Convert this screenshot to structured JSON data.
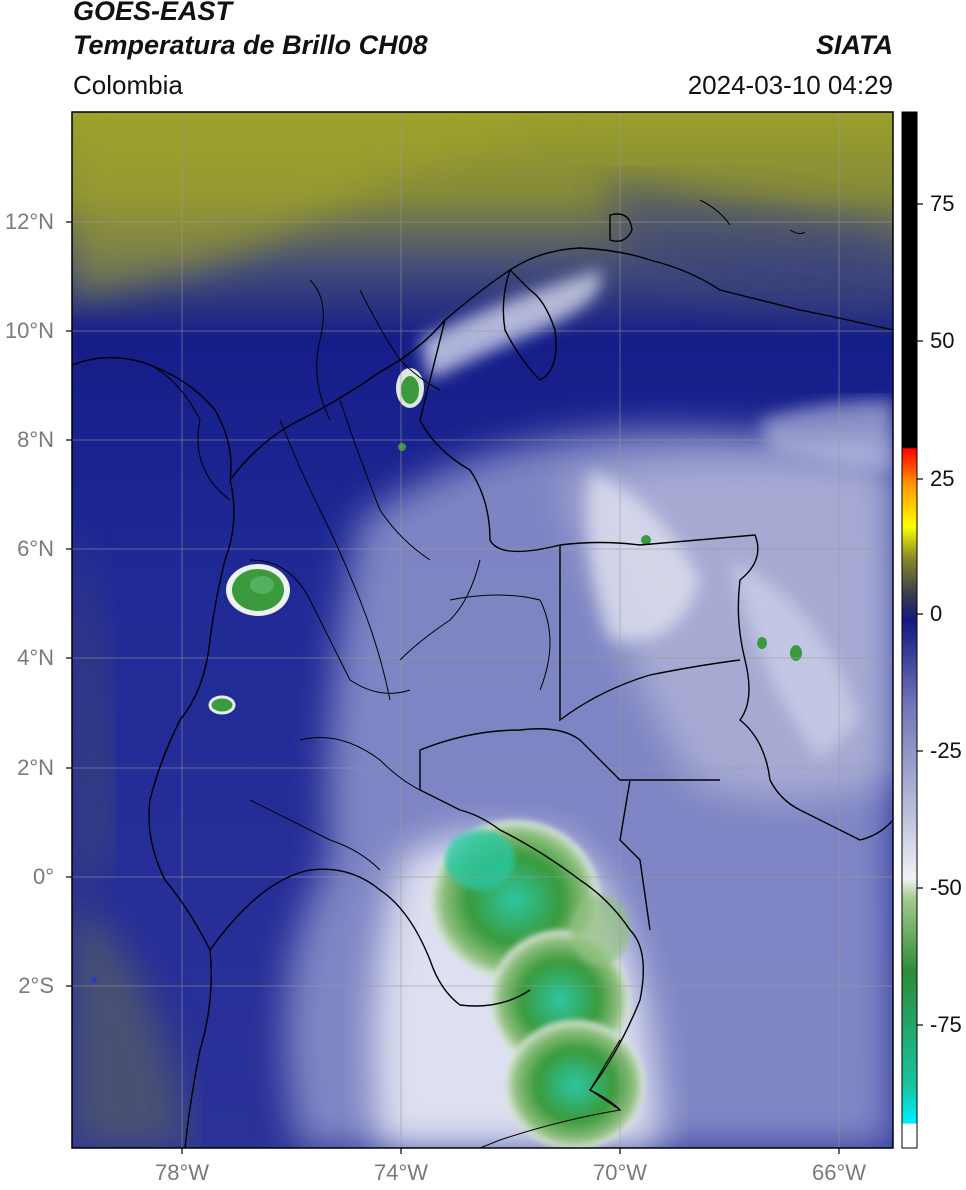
{
  "header": {
    "satellite": "GOES-EAST",
    "product": "Temperatura de Brillo CH08",
    "organization": "SIATA",
    "region": "Colombia",
    "datetime": "2024-03-10 04:29"
  },
  "map": {
    "latitude_labels": [
      "12°N",
      "10°N",
      "8°N",
      "6°N",
      "4°N",
      "2°N",
      "0°",
      "2°S"
    ],
    "longitude_labels": [
      "78°W",
      "74°W",
      "70°W",
      "66°W"
    ],
    "extent": {
      "lon_min": -80.0,
      "lon_max": -65.0,
      "lat_min": -5.2,
      "lat_max": 14.0
    },
    "colors": {
      "warm_yellow": "#9aa02a",
      "dark_blue": "#0f1c86",
      "mid_blue": "#3c46a8",
      "lavender": "#8f95cc",
      "cold_white": "#eef0f8",
      "cold_green": "#3a9a3c",
      "coldest_teal": "#2cc7a3",
      "grey_ocean": "#3f4776"
    }
  },
  "colorbar": {
    "tick_labels": [
      "75",
      "50",
      "25",
      "0",
      "-25",
      "-50",
      "-75"
    ],
    "gradient_colors": [
      "#ffffff",
      "#00f0ff",
      "#19c4a0",
      "#2e8b3a",
      "#7fb36a",
      "#e8eef2",
      "#b7bad9",
      "#7a80c0",
      "#3c44a6",
      "#12197c",
      "#3c3c4a",
      "#8b8b2a",
      "#ffff00",
      "#ff9900",
      "#ff0000",
      "#000000"
    ]
  }
}
